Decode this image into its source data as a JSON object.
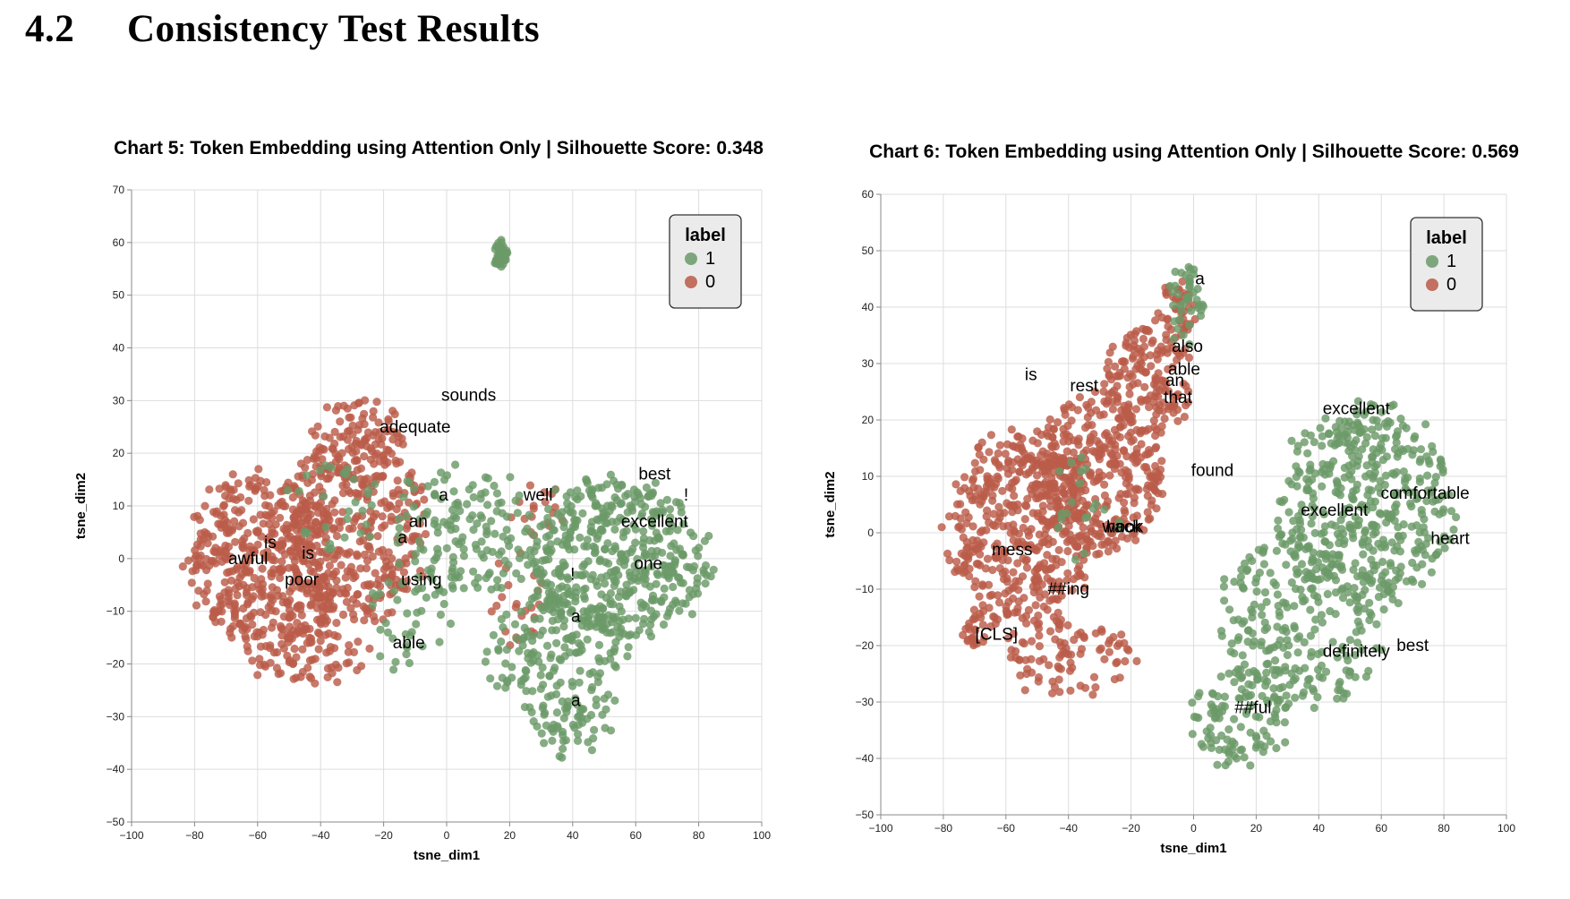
{
  "section": {
    "number": "4.2",
    "title": "Consistency Test Results"
  },
  "colors": {
    "label_1": "#6b9a68",
    "label_0": "#bb5b49",
    "grid": "#dddddd",
    "legend_bg": "#ebebeb"
  },
  "chart_data": [
    {
      "type": "scatter",
      "title": "Chart 5: Token Embedding using Attention Only | Silhouette Score: 0.348",
      "xlabel": "tsne_dim1",
      "ylabel": "tsne_dim2",
      "xlim": [
        -100,
        100
      ],
      "ylim": [
        -50,
        70
      ],
      "xticks": [
        -100,
        -80,
        -60,
        -40,
        -20,
        0,
        20,
        40,
        60,
        80,
        100
      ],
      "yticks": [
        -50,
        -40,
        -30,
        -20,
        -10,
        0,
        10,
        20,
        30,
        40,
        50,
        60,
        70
      ],
      "grid": true,
      "legend": {
        "title": "label",
        "position": "top-right",
        "entries": [
          "1",
          "0"
        ]
      },
      "silhouette_score": 0.348,
      "series": [
        {
          "name": "1",
          "color": "#6b9a68",
          "clusters": [
            {
              "cx": 55,
              "cy": 0,
              "rx": 28,
              "ry": 15,
              "n": 460
            },
            {
              "cx": 35,
              "cy": -18,
              "rx": 22,
              "ry": 13,
              "n": 180
            },
            {
              "cx": 40,
              "cy": -32,
              "rx": 12,
              "ry": 6,
              "n": 35
            },
            {
              "cx": 5,
              "cy": 5,
              "rx": 22,
              "ry": 13,
              "n": 150
            },
            {
              "cx": 17,
              "cy": 58,
              "rx": 2.5,
              "ry": 2.5,
              "n": 40
            },
            {
              "cx": -12,
              "cy": -12,
              "rx": 15,
              "ry": 10,
              "n": 35
            },
            {
              "cx": -35,
              "cy": 10,
              "rx": 15,
              "ry": 10,
              "n": 30
            }
          ]
        },
        {
          "name": "0",
          "color": "#bb5b49",
          "clusters": [
            {
              "cx": -58,
              "cy": 0,
              "rx": 24,
              "ry": 16,
              "n": 420
            },
            {
              "cx": -30,
              "cy": 5,
              "rx": 24,
              "ry": 18,
              "n": 360
            },
            {
              "cx": -28,
              "cy": 22,
              "rx": 16,
              "ry": 8,
              "n": 90
            },
            {
              "cx": -45,
              "cy": -18,
              "rx": 20,
              "ry": 6,
              "n": 90
            },
            {
              "cx": 22,
              "cy": -8,
              "rx": 10,
              "ry": 10,
              "n": 25
            },
            {
              "cx": 30,
              "cy": 10,
              "rx": 10,
              "ry": 6,
              "n": 18
            }
          ]
        }
      ],
      "annotations": [
        {
          "text": "sounds",
          "x": 7,
          "y": 31
        },
        {
          "text": "adequate",
          "x": -10,
          "y": 25
        },
        {
          "text": "best",
          "x": 66,
          "y": 16
        },
        {
          "text": "!",
          "x": 76,
          "y": 12
        },
        {
          "text": "well",
          "x": 29,
          "y": 12
        },
        {
          "text": "a",
          "x": -1,
          "y": 12
        },
        {
          "text": "excellent",
          "x": 66,
          "y": 7
        },
        {
          "text": "an",
          "x": -9,
          "y": 7
        },
        {
          "text": "a",
          "x": -14,
          "y": 4
        },
        {
          "text": "is",
          "x": -56,
          "y": 3
        },
        {
          "text": "is",
          "x": -44,
          "y": 1
        },
        {
          "text": "awful",
          "x": -63,
          "y": 0
        },
        {
          "text": "one",
          "x": 64,
          "y": -1
        },
        {
          "text": "poor",
          "x": -46,
          "y": -4
        },
        {
          "text": "using",
          "x": -8,
          "y": -4
        },
        {
          "text": "!",
          "x": 40,
          "y": -3
        },
        {
          "text": "a",
          "x": 41,
          "y": -11
        },
        {
          "text": "able",
          "x": -12,
          "y": -16
        },
        {
          "text": "a",
          "x": 41,
          "y": -27
        }
      ]
    },
    {
      "type": "scatter",
      "title": "Chart 6: Token Embedding using Attention Only | Silhouette Score: 0.569",
      "xlabel": "tsne_dim1",
      "ylabel": "tsne_dim2",
      "xlim": [
        -100,
        100
      ],
      "ylim": [
        -50,
        60
      ],
      "xticks": [
        -100,
        -80,
        -60,
        -40,
        -20,
        0,
        20,
        40,
        60,
        80,
        100
      ],
      "yticks": [
        -50,
        -40,
        -30,
        -20,
        -10,
        0,
        10,
        20,
        30,
        40,
        50,
        60
      ],
      "grid": true,
      "legend": {
        "title": "label",
        "position": "top-right",
        "entries": [
          "1",
          "0"
        ]
      },
      "silhouette_score": 0.569,
      "series": [
        {
          "name": "1",
          "color": "#6b9a68",
          "clusters": [
            {
              "cx": 55,
              "cy": 5,
              "rx": 28,
              "ry": 17,
              "n": 420
            },
            {
              "cx": 35,
              "cy": -15,
              "rx": 25,
              "ry": 16,
              "n": 260
            },
            {
              "cx": 15,
              "cy": -33,
              "rx": 16,
              "ry": 9,
              "n": 110
            },
            {
              "cx": -3,
              "cy": 40,
              "rx": 6,
              "ry": 8,
              "n": 40
            },
            {
              "cx": -35,
              "cy": 5,
              "rx": 15,
              "ry": 10,
              "n": 20
            }
          ]
        },
        {
          "name": "0",
          "color": "#bb5b49",
          "clusters": [
            {
              "cx": -55,
              "cy": 0,
              "rx": 23,
              "ry": 17,
              "n": 450
            },
            {
              "cx": -30,
              "cy": 10,
              "rx": 20,
              "ry": 14,
              "n": 330
            },
            {
              "cx": -15,
              "cy": 27,
              "rx": 14,
              "ry": 10,
              "n": 170
            },
            {
              "cx": -5,
              "cy": 40,
              "rx": 6,
              "ry": 5,
              "n": 40
            },
            {
              "cx": -40,
              "cy": -22,
              "rx": 20,
              "ry": 7,
              "n": 90
            },
            {
              "cx": -70,
              "cy": -17,
              "rx": 5,
              "ry": 3,
              "n": 25
            }
          ]
        }
      ],
      "annotations": [
        {
          "text": "a",
          "x": 2,
          "y": 45
        },
        {
          "text": "also",
          "x": -2,
          "y": 33
        },
        {
          "text": "able",
          "x": -3,
          "y": 29
        },
        {
          "text": "an",
          "x": -6,
          "y": 27
        },
        {
          "text": "that",
          "x": -5,
          "y": 24
        },
        {
          "text": "is",
          "x": -52,
          "y": 28
        },
        {
          "text": "rest",
          "x": -35,
          "y": 26
        },
        {
          "text": "excellent",
          "x": 52,
          "y": 22
        },
        {
          "text": "found",
          "x": 6,
          "y": 11
        },
        {
          "text": "comfortable",
          "x": 74,
          "y": 7
        },
        {
          "text": "excellent",
          "x": 45,
          "y": 4
        },
        {
          "text": "wack",
          "x": -23,
          "y": 1
        },
        {
          "text": "hook",
          "x": -22,
          "y": 1
        },
        {
          "text": "heart",
          "x": 82,
          "y": -1
        },
        {
          "text": "mess",
          "x": -58,
          "y": -3
        },
        {
          "text": "##ing",
          "x": -40,
          "y": -10
        },
        {
          "text": "[CLS]",
          "x": -63,
          "y": -18
        },
        {
          "text": "definitely",
          "x": 52,
          "y": -21
        },
        {
          "text": "best",
          "x": 70,
          "y": -20
        },
        {
          "text": "##ful",
          "x": 19,
          "y": -31
        }
      ]
    }
  ]
}
